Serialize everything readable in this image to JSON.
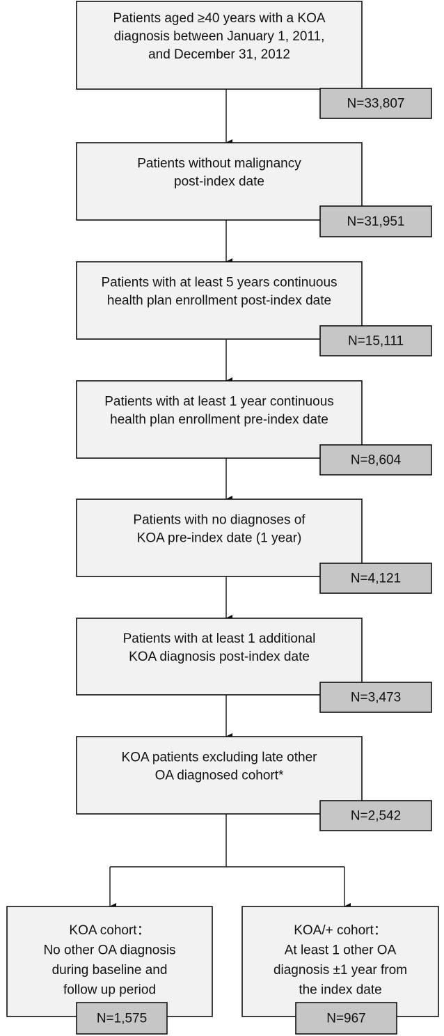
{
  "nodes": [
    {
      "lines": [
        "Patients aged ≥40 years with a KOA",
        "diagnosis between January 1, 2011,",
        "and December 31, 2012"
      ],
      "n": "N=33,807"
    },
    {
      "lines": [
        "Patients without malignancy",
        "post-index date"
      ],
      "n": "N=31,951"
    },
    {
      "lines": [
        "Patients with at least 5 years continuous",
        "health plan enrollment post-index date"
      ],
      "n": "N=15,111"
    },
    {
      "lines": [
        "Patients with at least 1 year continuous",
        "health plan enrollment pre-index date"
      ],
      "n": "N=8,604"
    },
    {
      "lines": [
        "Patients with no diagnoses of",
        "KOA pre-index date (1 year)"
      ],
      "n": "N=4,121"
    },
    {
      "lines": [
        "Patients with at least 1 additional",
        "KOA diagnosis post-index date"
      ],
      "n": "N=3,473"
    },
    {
      "lines": [
        "KOA patients excluding late other",
        "OA diagnosed cohort*"
      ],
      "n": "N=2,542"
    },
    {
      "lines": [
        "KOA cohort：",
        "No other OA diagnosis",
        "during baseline and",
        "follow up period"
      ],
      "n": "N=1,575"
    },
    {
      "lines": [
        "KOA/+ cohort：",
        "At least 1 other OA",
        "diagnosis ±1 year from",
        "the index date"
      ],
      "n": "N=967"
    }
  ]
}
